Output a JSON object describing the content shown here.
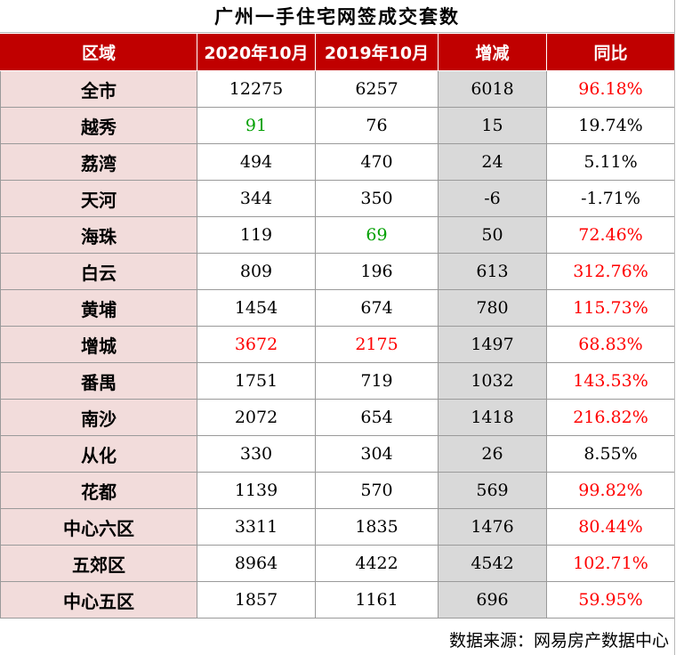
{
  "title": "广州一手住宅网签成交套数",
  "headers": [
    "区域",
    "2020年10月",
    "2019年10月",
    "增减",
    "同比"
  ],
  "rows": [
    {
      "area": "全市",
      "oct2020": "12275",
      "oct2019": "6257",
      "change": "6018",
      "yoy": "96.18%"
    },
    {
      "area": "越秀",
      "oct2020": "91",
      "oct2019": "76",
      "change": "15",
      "yoy": "19.74%"
    },
    {
      "area": "荔湾",
      "oct2020": "494",
      "oct2019": "470",
      "change": "24",
      "yoy": "5.11%"
    },
    {
      "area": "天河",
      "oct2020": "344",
      "oct2019": "350",
      "change": "-6",
      "yoy": "-1.71%"
    },
    {
      "area": "海珠",
      "oct2020": "119",
      "oct2019": "69",
      "change": "50",
      "yoy": "72.46%"
    },
    {
      "area": "白云",
      "oct2020": "809",
      "oct2019": "196",
      "change": "613",
      "yoy": "312.76%"
    },
    {
      "area": "黄埔",
      "oct2020": "1454",
      "oct2019": "674",
      "change": "780",
      "yoy": "115.73%"
    },
    {
      "area": "增城",
      "oct2020": "3672",
      "oct2019": "2175",
      "change": "1497",
      "yoy": "68.83%"
    },
    {
      "area": "番禺",
      "oct2020": "1751",
      "oct2019": "719",
      "change": "1032",
      "yoy": "143.53%"
    },
    {
      "area": "南沙",
      "oct2020": "2072",
      "oct2019": "654",
      "change": "1418",
      "yoy": "216.82%"
    },
    {
      "area": "从化",
      "oct2020": "330",
      "oct2019": "304",
      "change": "26",
      "yoy": "8.55%"
    },
    {
      "area": "花都",
      "oct2020": "1139",
      "oct2019": "570",
      "change": "569",
      "yoy": "99.82%"
    },
    {
      "area": "中心六区",
      "oct2020": "3311",
      "oct2019": "1835",
      "change": "1476",
      "yoy": "80.44%"
    },
    {
      "area": "五郊区",
      "oct2020": "8964",
      "oct2019": "4422",
      "change": "4542",
      "yoy": "102.71%"
    },
    {
      "area": "中心五区",
      "oct2020": "1857",
      "oct2019": "1161",
      "change": "696",
      "yoy": "59.95%"
    }
  ],
  "source": "数据来源：网易房产数据中心",
  "colors": {
    "header_bg": "#c00000",
    "area_bg": "#f2dcdb",
    "change_bg": "#d9d9d9",
    "highlight_red": "#ff0000",
    "highlight_green": "#00a000"
  }
}
